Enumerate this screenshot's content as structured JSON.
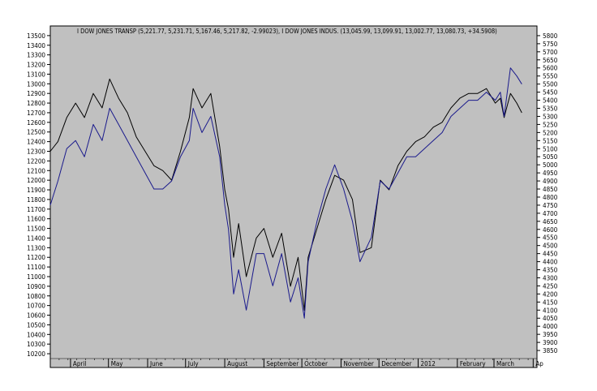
{
  "chart_data": {
    "type": "line",
    "legend": "I DOW JONES TRANSP (5,221.77, 5,231.71, 5,167.46, 5,217.82, -2.99023), I DOW JONES INDUS. (13,045.99, 13,099.91, 13,002.77, 13,080.73, +34.5908)",
    "x_labels": [
      "April",
      "May",
      "June",
      "July",
      "August",
      "September",
      "October",
      "November",
      "December",
      "2012",
      "February",
      "March",
      "Ap"
    ],
    "x_label_dates": [
      "2011-04-01",
      "2011-05-01",
      "2011-06-01",
      "2011-07-01",
      "2011-08-01",
      "2011-09-01",
      "2011-10-01",
      "2011-11-01",
      "2011-12-01",
      "2012-01-01",
      "2012-02-01",
      "2012-03-01",
      "2012-04-01"
    ],
    "xlim": [
      "2011-03-16",
      "2012-04-04"
    ],
    "grid": false,
    "left_axis": {
      "label": "",
      "ylim": [
        10150,
        13600
      ],
      "ticks": [
        10200,
        10300,
        10400,
        10500,
        10600,
        10700,
        10800,
        10900,
        11000,
        11100,
        11200,
        11300,
        11400,
        11500,
        11600,
        11700,
        11800,
        11900,
        12000,
        12100,
        12200,
        12300,
        12400,
        12500,
        12600,
        12700,
        12800,
        12900,
        13000,
        13100,
        13200,
        13300,
        13400,
        13500
      ]
    },
    "right_axis": {
      "label": "",
      "ylim": [
        3800,
        5860
      ],
      "ticks": [
        3850,
        3900,
        3950,
        4000,
        4050,
        4100,
        4150,
        4200,
        4250,
        4300,
        4350,
        4400,
        4450,
        4500,
        4550,
        4600,
        4650,
        4700,
        4750,
        4800,
        4850,
        4900,
        4950,
        5000,
        5050,
        5100,
        5150,
        5200,
        5250,
        5300,
        5350,
        5400,
        5450,
        5500,
        5550,
        5600,
        5650,
        5700,
        5750,
        5800
      ]
    },
    "series": [
      {
        "name": "I DOW JONES INDUS.",
        "axis": "left",
        "color": "#000000",
        "x": [
          "2011-03-16",
          "2011-03-22",
          "2011-03-29",
          "2011-04-05",
          "2011-04-12",
          "2011-04-19",
          "2011-04-26",
          "2011-05-02",
          "2011-05-09",
          "2011-05-16",
          "2011-05-23",
          "2011-05-30",
          "2011-06-06",
          "2011-06-13",
          "2011-06-20",
          "2011-06-27",
          "2011-07-04",
          "2011-07-07",
          "2011-07-14",
          "2011-07-21",
          "2011-07-28",
          "2011-08-01",
          "2011-08-04",
          "2011-08-08",
          "2011-08-12",
          "2011-08-18",
          "2011-08-26",
          "2011-09-01",
          "2011-09-08",
          "2011-09-15",
          "2011-09-22",
          "2011-09-28",
          "2011-10-03",
          "2011-10-06",
          "2011-10-13",
          "2011-10-20",
          "2011-10-27",
          "2011-11-03",
          "2011-11-10",
          "2011-11-16",
          "2011-11-25",
          "2011-12-02",
          "2011-12-09",
          "2011-12-16",
          "2011-12-23",
          "2011-12-30",
          "2012-01-06",
          "2012-01-13",
          "2012-01-20",
          "2012-01-27",
          "2012-02-03",
          "2012-02-10",
          "2012-02-17",
          "2012-02-24",
          "2012-03-02",
          "2012-03-06",
          "2012-03-09",
          "2012-03-14",
          "2012-03-19",
          "2012-03-23"
        ],
        "y": [
          12300,
          12400,
          12650,
          12800,
          12650,
          12900,
          12750,
          13050,
          12850,
          12700,
          12450,
          12300,
          12150,
          12100,
          12000,
          12300,
          12650,
          12950,
          12750,
          12900,
          12350,
          11900,
          11700,
          11200,
          11550,
          11000,
          11400,
          11500,
          11200,
          11450,
          10900,
          11200,
          10650,
          11200,
          11500,
          11800,
          12050,
          12000,
          11800,
          11250,
          11300,
          12000,
          11900,
          12150,
          12300,
          12400,
          12450,
          12550,
          12600,
          12750,
          12850,
          12900,
          12900,
          12950,
          12800,
          12850,
          12650,
          12900,
          12800,
          12700
        ]
      },
      {
        "name": "I DOW JONES TRANSP",
        "axis": "right",
        "color": "#1a1a8c",
        "x": [
          "2011-03-16",
          "2011-03-22",
          "2011-03-29",
          "2011-04-05",
          "2011-04-12",
          "2011-04-19",
          "2011-04-26",
          "2011-05-02",
          "2011-05-09",
          "2011-05-16",
          "2011-05-23",
          "2011-05-30",
          "2011-06-06",
          "2011-06-13",
          "2011-06-20",
          "2011-06-27",
          "2011-07-04",
          "2011-07-07",
          "2011-07-14",
          "2011-07-21",
          "2011-07-28",
          "2011-08-01",
          "2011-08-04",
          "2011-08-08",
          "2011-08-12",
          "2011-08-18",
          "2011-08-26",
          "2011-09-01",
          "2011-09-08",
          "2011-09-15",
          "2011-09-22",
          "2011-09-28",
          "2011-10-03",
          "2011-10-06",
          "2011-10-13",
          "2011-10-20",
          "2011-10-27",
          "2011-11-03",
          "2011-11-10",
          "2011-11-16",
          "2011-11-25",
          "2011-12-02",
          "2011-12-09",
          "2011-12-16",
          "2011-12-23",
          "2011-12-30",
          "2012-01-06",
          "2012-01-13",
          "2012-01-20",
          "2012-01-27",
          "2012-02-03",
          "2012-02-10",
          "2012-02-17",
          "2012-02-24",
          "2012-03-02",
          "2012-03-06",
          "2012-03-09",
          "2012-03-14",
          "2012-03-19",
          "2012-03-23"
        ],
        "y": [
          4750,
          4900,
          5100,
          5150,
          5050,
          5250,
          5150,
          5350,
          5250,
          5150,
          5050,
          4950,
          4850,
          4850,
          4900,
          5050,
          5150,
          5350,
          5200,
          5300,
          5050,
          4750,
          4600,
          4200,
          4350,
          4100,
          4450,
          4450,
          4250,
          4450,
          4150,
          4300,
          4050,
          4400,
          4650,
          4850,
          5000,
          4850,
          4650,
          4400,
          4550,
          4900,
          4850,
          4950,
          5050,
          5050,
          5100,
          5150,
          5200,
          5300,
          5350,
          5400,
          5400,
          5450,
          5400,
          5450,
          5300,
          5600,
          5550,
          5500
        ]
      }
    ]
  }
}
